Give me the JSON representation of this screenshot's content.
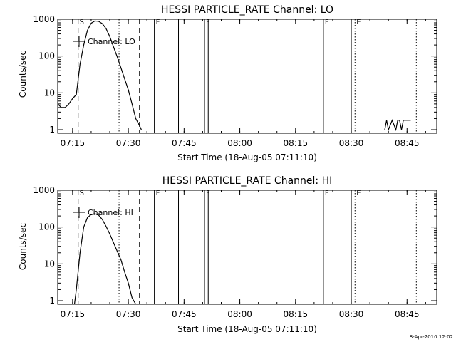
{
  "footer": {
    "timestamp": "8-Apr-2010 12:02"
  },
  "chart_data": [
    {
      "type": "line",
      "title": "HESSI PARTICLE_RATE Channel: LO",
      "ylabel": "Counts/sec",
      "xlabel": "Start Time (18-Aug-05 07:11:10)",
      "y_scale": "log",
      "ylim": [
        0.8,
        1000
      ],
      "xlim": [
        "07:11",
        "08:53"
      ],
      "x_ticks": [
        "07:15",
        "07:30",
        "07:45",
        "08:00",
        "08:15",
        "08:30",
        "08:45"
      ],
      "y_ticks": [
        "1",
        "10",
        "100",
        "1000"
      ],
      "legend": "Channel: LO",
      "grid": false,
      "series": [
        {
          "name": "Channel: LO",
          "points": [
            [
              "07:11",
              5
            ],
            [
              "07:12",
              4
            ],
            [
              "07:13",
              4
            ],
            [
              "07:14",
              5
            ],
            [
              "07:15",
              7
            ],
            [
              "07:16",
              9
            ],
            [
              "07:17",
              60
            ],
            [
              "07:18",
              200
            ],
            [
              "07:19",
              500
            ],
            [
              "07:20",
              780
            ],
            [
              "07:21",
              900
            ],
            [
              "07:22",
              880
            ],
            [
              "07:23",
              760
            ],
            [
              "07:24",
              560
            ],
            [
              "07:25",
              340
            ],
            [
              "07:26",
              180
            ],
            [
              "07:27",
              95
            ],
            [
              "07:28",
              48
            ],
            [
              "07:29",
              24
            ],
            [
              "07:30",
              12
            ],
            [
              "07:31",
              5
            ],
            [
              "07:32",
              2
            ],
            [
              "07:33",
              1.3
            ],
            [
              "07:33.5",
              1
            ]
          ]
        },
        {
          "name": "",
          "points": [
            [
              "08:39",
              1
            ],
            [
              "08:39.5",
              1.8
            ],
            [
              "08:40",
              1
            ],
            [
              "08:41",
              1.8
            ],
            [
              "08:42",
              1
            ],
            [
              "08:42.5",
              1.8
            ],
            [
              "08:43",
              1.8
            ],
            [
              "08:43.5",
              1
            ],
            [
              "08:44",
              1.8
            ],
            [
              "08:46",
              1.8
            ]
          ]
        }
      ],
      "markers": [
        {
          "time": "07:16.5",
          "style": "dashed",
          "label": "S"
        },
        {
          "time": "07:33",
          "style": "dashed",
          "label": ""
        },
        {
          "time": "07:27.5",
          "style": "dotted",
          "label": ""
        },
        {
          "time": "08:31",
          "style": "dotted",
          "label": "E"
        },
        {
          "time": "08:47.5",
          "style": "dotted",
          "label": ""
        },
        {
          "time": "07:37",
          "style": "solid",
          "label": "F"
        },
        {
          "time": "07:43.5",
          "style": "solid",
          "label": ""
        },
        {
          "time": "07:50.5",
          "style": "solid",
          "label": "F"
        },
        {
          "time": "07:51.5",
          "style": "solid",
          "label": ""
        },
        {
          "time": "08:22.5",
          "style": "solid",
          "label": "F"
        },
        {
          "time": "08:30",
          "style": "solid",
          "label": ""
        }
      ]
    },
    {
      "type": "line",
      "title": "HESSI PARTICLE_RATE Channel: HI",
      "ylabel": "Counts/sec",
      "xlabel": "Start Time (18-Aug-05 07:11:10)",
      "y_scale": "log",
      "ylim": [
        0.8,
        1000
      ],
      "xlim": [
        "07:11",
        "08:53"
      ],
      "x_ticks": [
        "07:15",
        "07:30",
        "07:45",
        "08:00",
        "08:15",
        "08:30",
        "08:45"
      ],
      "y_ticks": [
        "1",
        "10",
        "100",
        "1000"
      ],
      "legend": "Channel: HI",
      "grid": false,
      "series": [
        {
          "name": "Channel: HI",
          "points": [
            [
              "07:15.5",
              0.8
            ],
            [
              "07:16",
              2
            ],
            [
              "07:17",
              20
            ],
            [
              "07:18",
              100
            ],
            [
              "07:19",
              180
            ],
            [
              "07:20",
              220
            ],
            [
              "07:21",
              230
            ],
            [
              "07:22",
              210
            ],
            [
              "07:23",
              160
            ],
            [
              "07:24",
              105
            ],
            [
              "07:25",
              65
            ],
            [
              "07:26",
              38
            ],
            [
              "07:27",
              22
            ],
            [
              "07:28",
              13
            ],
            [
              "07:29",
              6
            ],
            [
              "07:30",
              3
            ],
            [
              "07:31",
              1.2
            ],
            [
              "07:32",
              0.8
            ]
          ]
        }
      ],
      "markers": [
        {
          "time": "07:16.5",
          "style": "dashed",
          "label": "S"
        },
        {
          "time": "07:33",
          "style": "dashed",
          "label": ""
        },
        {
          "time": "07:27.5",
          "style": "dotted",
          "label": ""
        },
        {
          "time": "08:31",
          "style": "dotted",
          "label": "E"
        },
        {
          "time": "08:47.5",
          "style": "dotted",
          "label": ""
        },
        {
          "time": "07:37",
          "style": "solid",
          "label": "F"
        },
        {
          "time": "07:43.5",
          "style": "solid",
          "label": ""
        },
        {
          "time": "07:50.5",
          "style": "solid",
          "label": "F"
        },
        {
          "time": "07:51.5",
          "style": "solid",
          "label": ""
        },
        {
          "time": "08:22.5",
          "style": "solid",
          "label": "F"
        },
        {
          "time": "08:30",
          "style": "solid",
          "label": ""
        }
      ]
    }
  ]
}
